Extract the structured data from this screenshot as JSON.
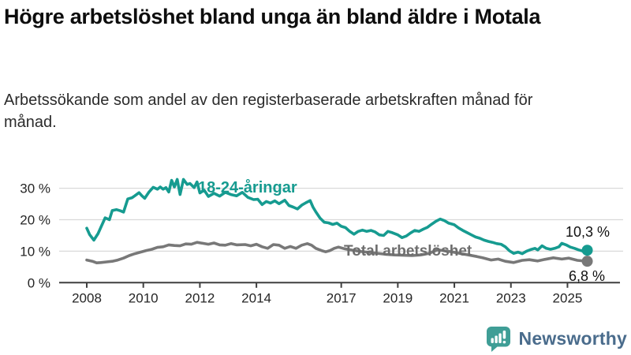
{
  "header": {
    "title": "Högre arbetslöshet bland unga än bland äldre i Motala",
    "subtitle": "Arbetssökande som andel av den registerbaserade arbetskraften månad för månad."
  },
  "chart_data": {
    "type": "line",
    "unit": "%",
    "grid": "horizontal",
    "x_axis": {
      "ticks": [
        2008,
        2010,
        2012,
        2014,
        2017,
        2019,
        2021,
        2023,
        2025
      ]
    },
    "y_axis": {
      "ticks": [
        0,
        10,
        20,
        30
      ],
      "tick_suffix": " %",
      "range": [
        0,
        34
      ]
    },
    "series": [
      {
        "name": "18-24-åringar",
        "color": "#169b90",
        "end_label": "10,3 %",
        "end_value": 10.3,
        "points": [
          [
            2008.0,
            17.3
          ],
          [
            2008.1,
            15.3
          ],
          [
            2008.25,
            13.5
          ],
          [
            2008.4,
            15.6
          ],
          [
            2008.55,
            18.6
          ],
          [
            2008.65,
            20.6
          ],
          [
            2008.8,
            20.0
          ],
          [
            2008.9,
            22.9
          ],
          [
            2009.05,
            23.2
          ],
          [
            2009.2,
            22.8
          ],
          [
            2009.3,
            22.4
          ],
          [
            2009.45,
            26.6
          ],
          [
            2009.6,
            27.0
          ],
          [
            2009.7,
            27.6
          ],
          [
            2009.85,
            28.6
          ],
          [
            2009.95,
            27.6
          ],
          [
            2010.05,
            26.8
          ],
          [
            2010.2,
            28.8
          ],
          [
            2010.35,
            30.3
          ],
          [
            2010.5,
            29.7
          ],
          [
            2010.6,
            30.4
          ],
          [
            2010.7,
            29.7
          ],
          [
            2010.8,
            30.2
          ],
          [
            2010.9,
            28.8
          ],
          [
            2011.0,
            32.5
          ],
          [
            2011.1,
            30.4
          ],
          [
            2011.2,
            32.8
          ],
          [
            2011.3,
            28.0
          ],
          [
            2011.42,
            32.8
          ],
          [
            2011.55,
            31.2
          ],
          [
            2011.65,
            31.5
          ],
          [
            2011.8,
            30.2
          ],
          [
            2011.9,
            32.0
          ],
          [
            2012.0,
            28.5
          ],
          [
            2012.15,
            29.4
          ],
          [
            2012.3,
            27.4
          ],
          [
            2012.5,
            28.4
          ],
          [
            2012.7,
            27.5
          ],
          [
            2012.9,
            28.7
          ],
          [
            2013.1,
            28.0
          ],
          [
            2013.3,
            27.6
          ],
          [
            2013.5,
            28.7
          ],
          [
            2013.7,
            27.1
          ],
          [
            2013.9,
            26.4
          ],
          [
            2014.05,
            26.5
          ],
          [
            2014.2,
            24.8
          ],
          [
            2014.35,
            25.8
          ],
          [
            2014.5,
            25.3
          ],
          [
            2014.65,
            26.0
          ],
          [
            2014.8,
            25.1
          ],
          [
            2015.0,
            26.2
          ],
          [
            2015.15,
            24.5
          ],
          [
            2015.3,
            24.0
          ],
          [
            2015.45,
            23.4
          ],
          [
            2015.6,
            24.6
          ],
          [
            2015.75,
            25.4
          ],
          [
            2015.9,
            26.1
          ],
          [
            2016.0,
            24.0
          ],
          [
            2016.1,
            22.5
          ],
          [
            2016.25,
            20.5
          ],
          [
            2016.4,
            19.2
          ],
          [
            2016.55,
            19.0
          ],
          [
            2016.7,
            18.5
          ],
          [
            2016.85,
            18.9
          ],
          [
            2017.0,
            17.9
          ],
          [
            2017.15,
            17.5
          ],
          [
            2017.3,
            16.3
          ],
          [
            2017.45,
            15.4
          ],
          [
            2017.6,
            16.3
          ],
          [
            2017.75,
            16.7
          ],
          [
            2017.9,
            16.3
          ],
          [
            2018.05,
            16.6
          ],
          [
            2018.2,
            16.1
          ],
          [
            2018.35,
            15.2
          ],
          [
            2018.5,
            15.0
          ],
          [
            2018.65,
            16.3
          ],
          [
            2018.8,
            15.9
          ],
          [
            2019.0,
            15.2
          ],
          [
            2019.15,
            14.3
          ],
          [
            2019.3,
            14.8
          ],
          [
            2019.45,
            15.8
          ],
          [
            2019.6,
            16.6
          ],
          [
            2019.75,
            16.3
          ],
          [
            2019.9,
            17.0
          ],
          [
            2020.05,
            17.6
          ],
          [
            2020.2,
            18.6
          ],
          [
            2020.35,
            19.5
          ],
          [
            2020.5,
            20.2
          ],
          [
            2020.65,
            19.7
          ],
          [
            2020.8,
            18.9
          ],
          [
            2021.0,
            18.4
          ],
          [
            2021.15,
            17.4
          ],
          [
            2021.3,
            16.6
          ],
          [
            2021.45,
            15.9
          ],
          [
            2021.6,
            15.2
          ],
          [
            2021.75,
            14.5
          ],
          [
            2021.9,
            14.1
          ],
          [
            2022.05,
            13.5
          ],
          [
            2022.2,
            13.1
          ],
          [
            2022.35,
            12.8
          ],
          [
            2022.5,
            12.4
          ],
          [
            2022.65,
            12.2
          ],
          [
            2022.8,
            11.4
          ],
          [
            2022.95,
            10.1
          ],
          [
            2023.1,
            9.3
          ],
          [
            2023.25,
            9.7
          ],
          [
            2023.4,
            9.2
          ],
          [
            2023.55,
            10.0
          ],
          [
            2023.7,
            10.5
          ],
          [
            2023.85,
            10.9
          ],
          [
            2023.95,
            10.4
          ],
          [
            2024.1,
            11.7
          ],
          [
            2024.25,
            10.9
          ],
          [
            2024.4,
            10.6
          ],
          [
            2024.55,
            10.9
          ],
          [
            2024.7,
            11.4
          ],
          [
            2024.8,
            12.5
          ],
          [
            2024.95,
            12.0
          ],
          [
            2025.1,
            11.3
          ],
          [
            2025.25,
            10.9
          ],
          [
            2025.4,
            10.4
          ],
          [
            2025.55,
            10.0
          ],
          [
            2025.7,
            10.3
          ]
        ]
      },
      {
        "name": "Total arbetslöshet",
        "color": "#787878",
        "end_label": "6,8 %",
        "end_value": 6.8,
        "points": [
          [
            2008.0,
            7.2
          ],
          [
            2008.2,
            6.8
          ],
          [
            2008.35,
            6.3
          ],
          [
            2008.5,
            6.4
          ],
          [
            2008.7,
            6.6
          ],
          [
            2008.9,
            6.8
          ],
          [
            2009.1,
            7.2
          ],
          [
            2009.3,
            7.8
          ],
          [
            2009.5,
            8.6
          ],
          [
            2009.7,
            9.2
          ],
          [
            2009.9,
            9.7
          ],
          [
            2010.1,
            10.2
          ],
          [
            2010.3,
            10.6
          ],
          [
            2010.5,
            11.2
          ],
          [
            2010.7,
            11.4
          ],
          [
            2010.9,
            12.0
          ],
          [
            2011.1,
            11.8
          ],
          [
            2011.3,
            11.7
          ],
          [
            2011.5,
            12.3
          ],
          [
            2011.7,
            12.2
          ],
          [
            2011.9,
            12.8
          ],
          [
            2012.1,
            12.5
          ],
          [
            2012.3,
            12.2
          ],
          [
            2012.5,
            12.6
          ],
          [
            2012.7,
            12.0
          ],
          [
            2012.9,
            11.9
          ],
          [
            2013.1,
            12.4
          ],
          [
            2013.3,
            12.0
          ],
          [
            2013.6,
            12.1
          ],
          [
            2013.8,
            11.7
          ],
          [
            2014.0,
            12.2
          ],
          [
            2014.2,
            11.4
          ],
          [
            2014.4,
            10.9
          ],
          [
            2014.6,
            12.1
          ],
          [
            2014.8,
            11.9
          ],
          [
            2015.0,
            10.9
          ],
          [
            2015.2,
            11.5
          ],
          [
            2015.4,
            10.9
          ],
          [
            2015.6,
            11.9
          ],
          [
            2015.8,
            12.4
          ],
          [
            2015.95,
            11.9
          ],
          [
            2016.1,
            10.9
          ],
          [
            2016.3,
            10.2
          ],
          [
            2016.45,
            9.8
          ],
          [
            2016.6,
            10.2
          ],
          [
            2016.75,
            10.9
          ],
          [
            2016.9,
            11.3
          ],
          [
            2017.1,
            10.8
          ],
          [
            2017.4,
            10.3
          ],
          [
            2017.7,
            9.9
          ],
          [
            2018.0,
            9.6
          ],
          [
            2018.3,
            9.3
          ],
          [
            2018.6,
            9.0
          ],
          [
            2018.9,
            8.8
          ],
          [
            2019.2,
            8.7
          ],
          [
            2019.5,
            8.6
          ],
          [
            2019.8,
            8.8
          ],
          [
            2020.1,
            9.3
          ],
          [
            2020.4,
            10.4
          ],
          [
            2020.6,
            10.2
          ],
          [
            2020.9,
            9.8
          ],
          [
            2021.2,
            9.3
          ],
          [
            2021.5,
            8.8
          ],
          [
            2021.8,
            8.3
          ],
          [
            2022.0,
            7.9
          ],
          [
            2022.3,
            7.2
          ],
          [
            2022.55,
            7.5
          ],
          [
            2022.8,
            6.8
          ],
          [
            2023.1,
            6.4
          ],
          [
            2023.4,
            7.1
          ],
          [
            2023.65,
            7.3
          ],
          [
            2023.95,
            6.9
          ],
          [
            2024.2,
            7.4
          ],
          [
            2024.5,
            7.9
          ],
          [
            2024.8,
            7.5
          ],
          [
            2025.05,
            7.8
          ],
          [
            2025.35,
            7.1
          ],
          [
            2025.7,
            6.8
          ]
        ]
      }
    ]
  },
  "branding": {
    "logo_text": "Newsworthy",
    "logo_icon": "bar-chart-speech-bubble-icon",
    "logo_icon_color": "#3f9e96",
    "logo_text_color": "#4a6c8c"
  },
  "colors": {
    "accent_teal": "#169b90",
    "series_gray": "#787878",
    "grid": "#d9d9d9",
    "axis": "#3f3f3f",
    "text": "#0d0d0d"
  }
}
